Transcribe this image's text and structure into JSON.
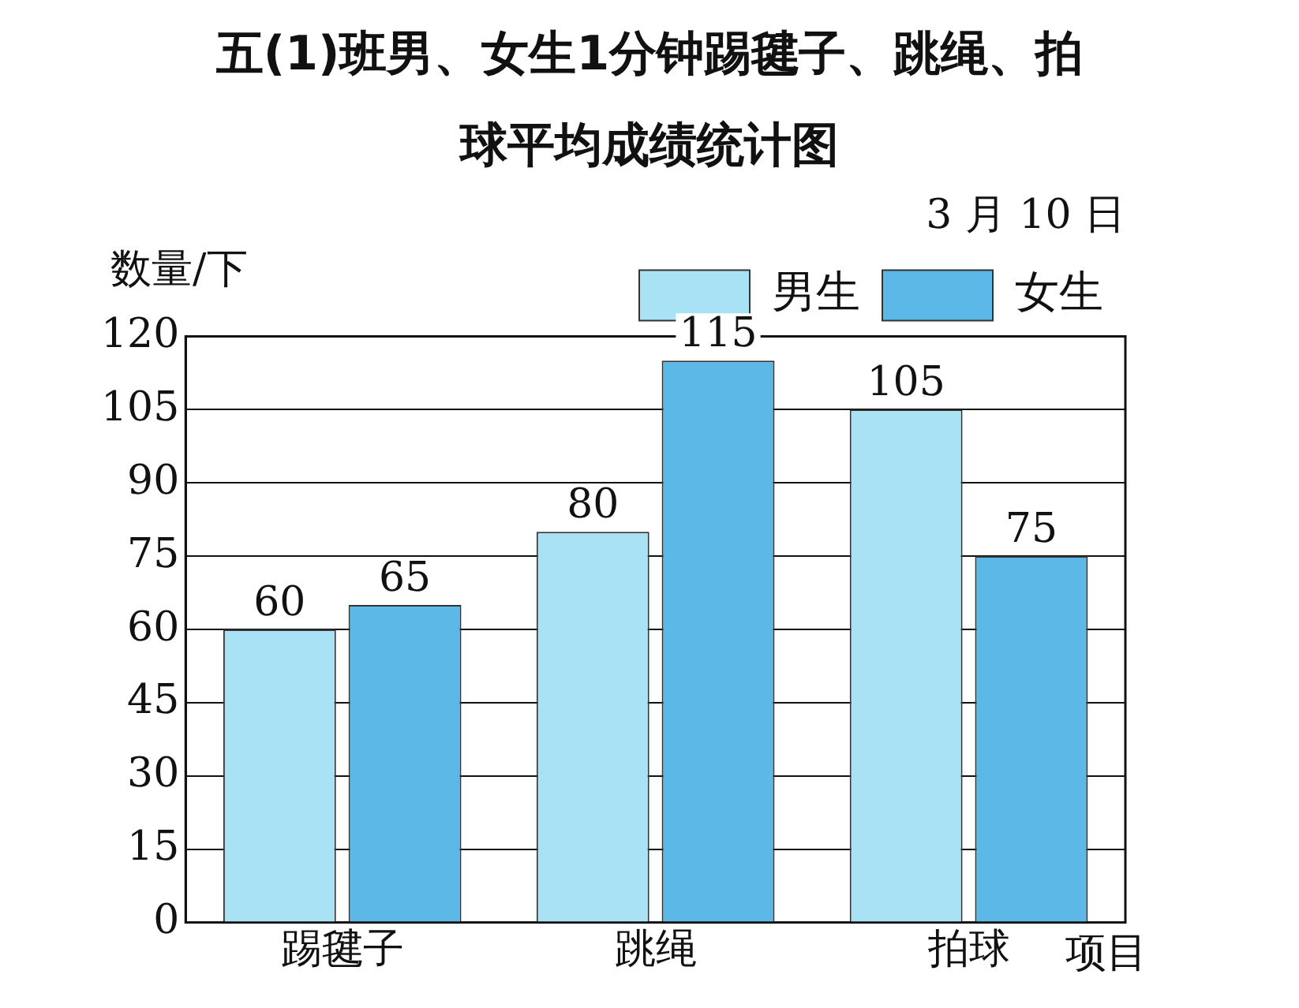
{
  "chart_data": {
    "type": "bar",
    "title": "五(1)班男、女生1分钟踢毽子、跳绳、拍球平均成绩统计图",
    "subtitle": "3 月 10 日",
    "ylabel": "数量/下",
    "xlabel": "项目",
    "categories": [
      "踢毽子",
      "跳绳",
      "拍球"
    ],
    "series": [
      {
        "name": "男生",
        "color": "#a9e2f5",
        "values": [
          60,
          80,
          105
        ]
      },
      {
        "name": "女生",
        "color": "#5cb8e6",
        "values": [
          65,
          115,
          75
        ]
      }
    ],
    "ylim": [
      0,
      120
    ],
    "yticks": [
      0,
      15,
      30,
      45,
      60,
      75,
      90,
      105,
      120
    ],
    "grid": "y",
    "legend": "top right",
    "data_labels": true
  }
}
